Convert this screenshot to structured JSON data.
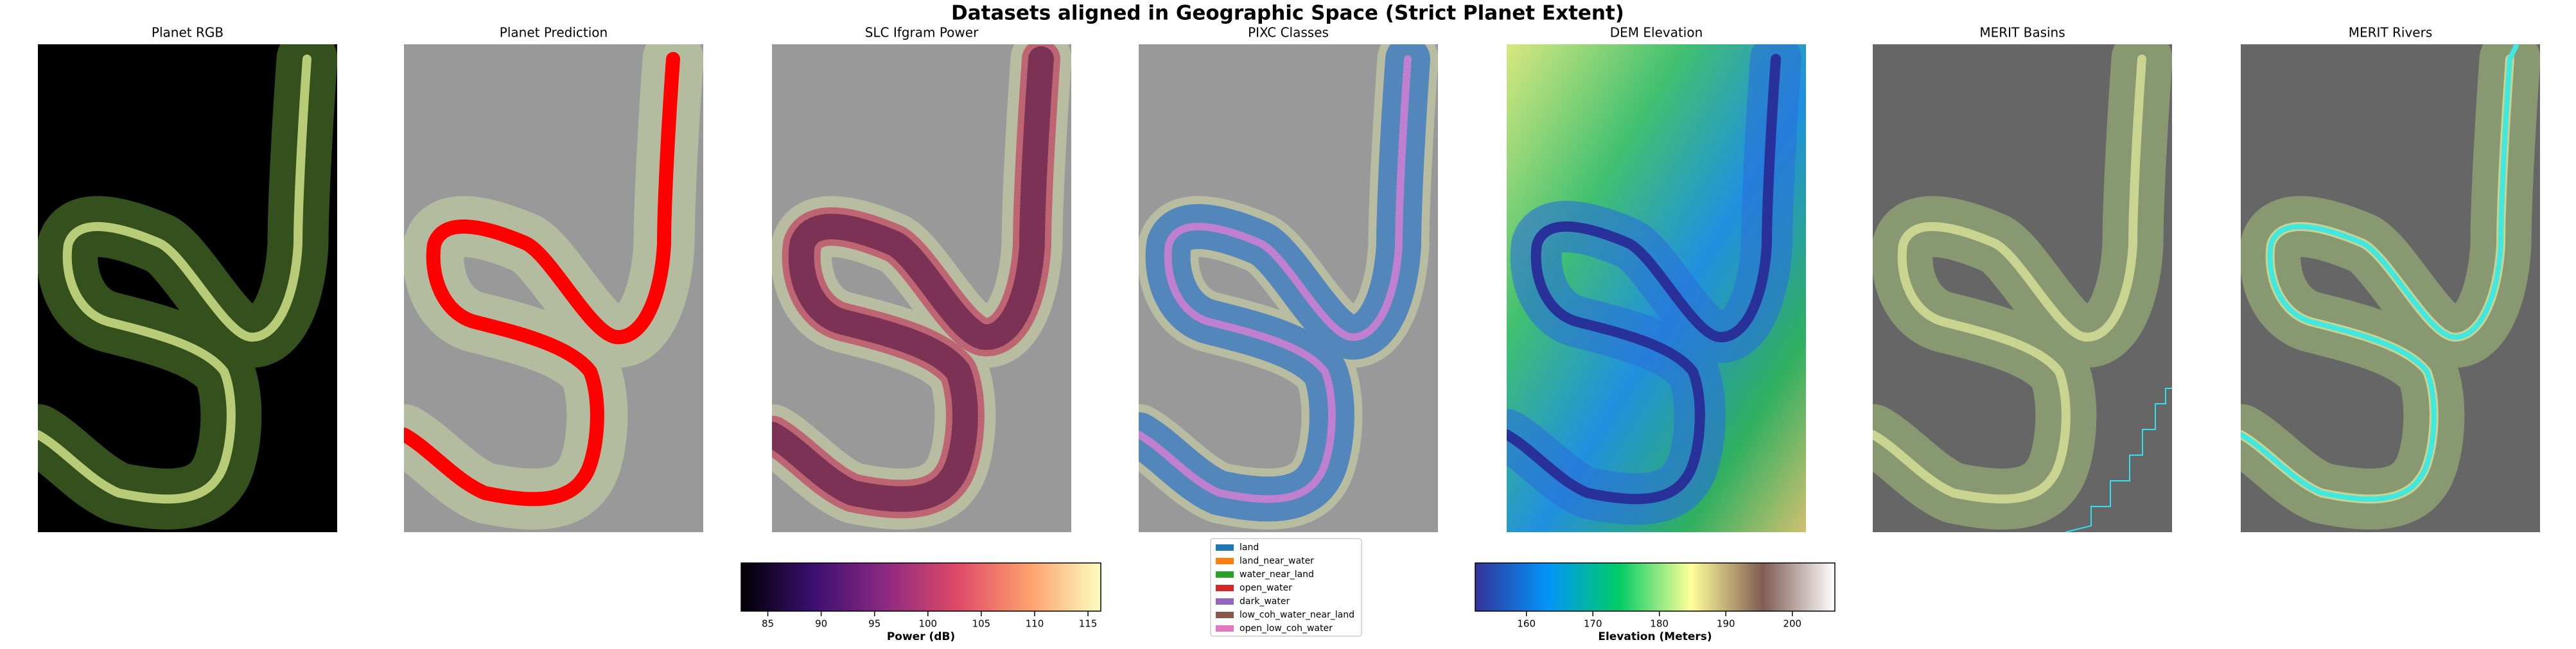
{
  "title": "Datasets aligned in Geographic Space (Strict Planet Extent)",
  "panels": [
    {
      "title": "Planet RGB"
    },
    {
      "title": "Planet Prediction"
    },
    {
      "title": "SLC Ifgram Power"
    },
    {
      "title": "PIXC Classes"
    },
    {
      "title": "DEM Elevation"
    },
    {
      "title": "MERIT Basins"
    },
    {
      "title": "MERIT Rivers"
    }
  ],
  "colorbars": [
    {
      "label": "Power (dB)",
      "xlim": [
        82.5,
        116.2
      ],
      "xticks": [
        85,
        90,
        95,
        100,
        105,
        110,
        115
      ],
      "colors": [
        "#000004",
        "#3b0f70",
        "#8c2981",
        "#de4968",
        "#fe9f6d",
        "#fcfdbf"
      ]
    },
    {
      "label": "Elevation (Meters)",
      "xlim": [
        152.3,
        206.4
      ],
      "xticks": [
        160,
        170,
        180,
        190,
        200
      ],
      "colors": [
        "#333399",
        "#0294fa",
        "#01cc66",
        "#ffff99",
        "#805c54",
        "#ffffff"
      ]
    }
  ],
  "legend": {
    "items": [
      {
        "name": "land",
        "color": "#1f77b4"
      },
      {
        "name": "land_near_water",
        "color": "#ff7f0e"
      },
      {
        "name": "water_near_land",
        "color": "#2ca02c"
      },
      {
        "name": "open_water",
        "color": "#d62728"
      },
      {
        "name": "dark_water",
        "color": "#9467bd"
      },
      {
        "name": "low_coh_water_near_land",
        "color": "#8c564b"
      },
      {
        "name": "open_low_coh_water",
        "color": "#e377c2"
      }
    ]
  }
}
